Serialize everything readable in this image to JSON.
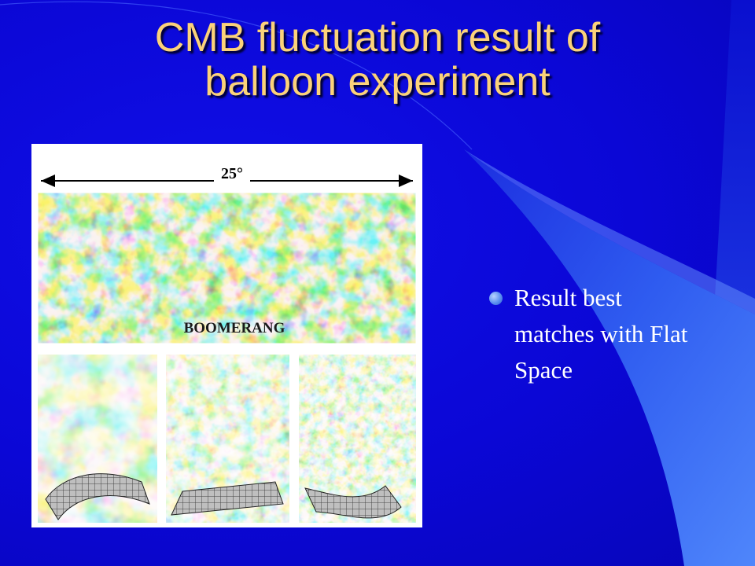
{
  "slide": {
    "title": "CMB fluctuation result of balloon experiment",
    "bullets": [
      "Result best matches with Flat Space"
    ]
  },
  "figure": {
    "scale_label": "25°",
    "main_map_label": "BOOMERANG",
    "panels": [
      "closed-curvature",
      "flat",
      "open-curvature"
    ]
  },
  "colors": {
    "background": "#0b07d6",
    "title": "#fbd27a",
    "bullet_text": "#ffffff",
    "accent_swoosh": "#3b6ff5",
    "map_cold": "#1a3cd8",
    "map_mid": "#7fd8e8",
    "map_warm": "#f2e24a",
    "map_hot": "#e0301e"
  }
}
